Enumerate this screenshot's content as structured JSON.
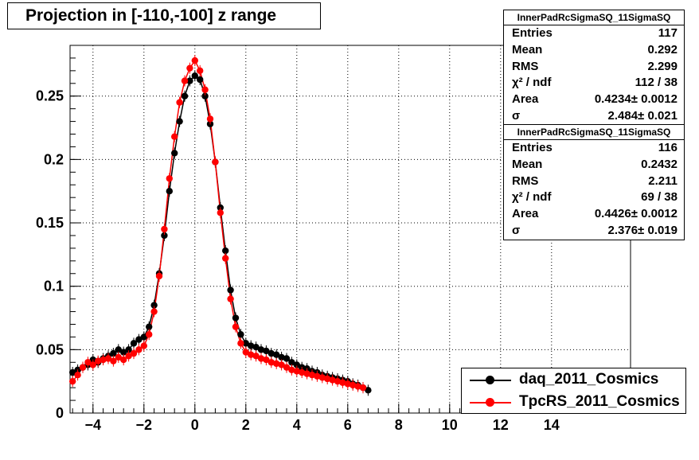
{
  "title": "Projection in [-110,-100] z range",
  "stats": [
    {
      "name": "InnerPadRcSigmaSQ_11SigmaSQ",
      "rows": [
        {
          "k": "Entries",
          "v": "117"
        },
        {
          "k": "Mean",
          "v": "0.292"
        },
        {
          "k": "RMS",
          "v": "2.299"
        },
        {
          "k": "χ² / ndf",
          "v": "112 / 38"
        },
        {
          "k": "Area",
          "v": "0.4234± 0.0012"
        },
        {
          "k": "σ",
          "v": "2.484± 0.021"
        }
      ]
    },
    {
      "name": "InnerPadRcSigmaSQ_11SigmaSQ",
      "rows": [
        {
          "k": "Entries",
          "v": "116"
        },
        {
          "k": "Mean",
          "v": "0.2432"
        },
        {
          "k": "RMS",
          "v": "2.211"
        },
        {
          "k": "χ² / ndf",
          "v": "69 / 38"
        },
        {
          "k": "Area",
          "v": "0.4426± 0.0012"
        },
        {
          "k": "σ",
          "v": "2.376± 0.019"
        }
      ]
    }
  ],
  "legend": [
    {
      "label": "daq_2011_Cosmics",
      "color": "#000000"
    },
    {
      "label": "TpcRS_2011_Cosmics",
      "color": "#ff0000"
    }
  ],
  "chart_data": {
    "type": "scatter",
    "xlim": [
      -4.9,
      17.1
    ],
    "ylim": [
      0,
      0.29
    ],
    "xticks": [
      -4,
      -2,
      0,
      2,
      4,
      6,
      8,
      10,
      12,
      14
    ],
    "yticks": [
      0,
      0.05,
      0.1,
      0.15,
      0.2,
      0.25
    ],
    "ytick_labels": [
      "0",
      "0.05",
      "0.1",
      "0.15",
      "0.2",
      "0.25"
    ],
    "grid": true,
    "legend_position": "bottom-right",
    "series": [
      {
        "name": "daq_2011_Cosmics",
        "color": "#000000",
        "x": [
          -4.8,
          -4.6,
          -4.4,
          -4.2,
          -4.0,
          -3.8,
          -3.6,
          -3.4,
          -3.2,
          -3.0,
          -2.8,
          -2.6,
          -2.4,
          -2.2,
          -2.0,
          -1.8,
          -1.6,
          -1.4,
          -1.2,
          -1.0,
          -0.8,
          -0.6,
          -0.4,
          -0.2,
          0.0,
          0.2,
          0.4,
          0.6,
          0.8,
          1.0,
          1.2,
          1.4,
          1.6,
          1.8,
          2.0,
          2.2,
          2.4,
          2.6,
          2.8,
          3.0,
          3.2,
          3.4,
          3.6,
          3.8,
          4.0,
          4.2,
          4.4,
          4.6,
          4.8,
          5.0,
          5.2,
          5.4,
          5.6,
          5.8,
          6.0,
          6.2,
          6.4,
          6.6,
          6.8
        ],
        "y": [
          0.032,
          0.034,
          0.036,
          0.038,
          0.042,
          0.04,
          0.043,
          0.045,
          0.047,
          0.05,
          0.048,
          0.05,
          0.055,
          0.058,
          0.06,
          0.068,
          0.085,
          0.11,
          0.14,
          0.175,
          0.205,
          0.23,
          0.25,
          0.262,
          0.266,
          0.263,
          0.25,
          0.228,
          0.198,
          0.162,
          0.128,
          0.097,
          0.075,
          0.062,
          0.055,
          0.053,
          0.052,
          0.05,
          0.049,
          0.047,
          0.046,
          0.044,
          0.043,
          0.04,
          0.038,
          0.036,
          0.035,
          0.033,
          0.032,
          0.03,
          0.029,
          0.028,
          0.027,
          0.026,
          0.025,
          0.023,
          0.022,
          0.02,
          0.018
        ]
      },
      {
        "name": "TpcRS_2011_Cosmics",
        "color": "#ff0000",
        "x": [
          -4.8,
          -4.6,
          -4.4,
          -4.2,
          -4.0,
          -3.8,
          -3.6,
          -3.4,
          -3.2,
          -3.0,
          -2.8,
          -2.6,
          -2.4,
          -2.2,
          -2.0,
          -1.8,
          -1.6,
          -1.4,
          -1.2,
          -1.0,
          -0.8,
          -0.6,
          -0.4,
          -0.2,
          0.0,
          0.2,
          0.4,
          0.6,
          0.8,
          1.0,
          1.2,
          1.4,
          1.6,
          1.8,
          2.0,
          2.2,
          2.4,
          2.6,
          2.8,
          3.0,
          3.2,
          3.4,
          3.6,
          3.8,
          4.0,
          4.2,
          4.4,
          4.6,
          4.8,
          5.0,
          5.2,
          5.4,
          5.6,
          5.8,
          6.0,
          6.2,
          6.4,
          6.6
        ],
        "y": [
          0.025,
          0.03,
          0.036,
          0.04,
          0.038,
          0.041,
          0.042,
          0.043,
          0.041,
          0.044,
          0.042,
          0.045,
          0.047,
          0.05,
          0.053,
          0.062,
          0.08,
          0.108,
          0.145,
          0.185,
          0.218,
          0.245,
          0.262,
          0.272,
          0.278,
          0.27,
          0.255,
          0.232,
          0.198,
          0.158,
          0.122,
          0.09,
          0.068,
          0.055,
          0.048,
          0.046,
          0.045,
          0.043,
          0.042,
          0.04,
          0.039,
          0.038,
          0.036,
          0.034,
          0.033,
          0.032,
          0.031,
          0.03,
          0.029,
          0.028,
          0.027,
          0.026,
          0.025,
          0.024,
          0.023,
          0.022,
          0.021,
          0.02
        ]
      }
    ]
  }
}
